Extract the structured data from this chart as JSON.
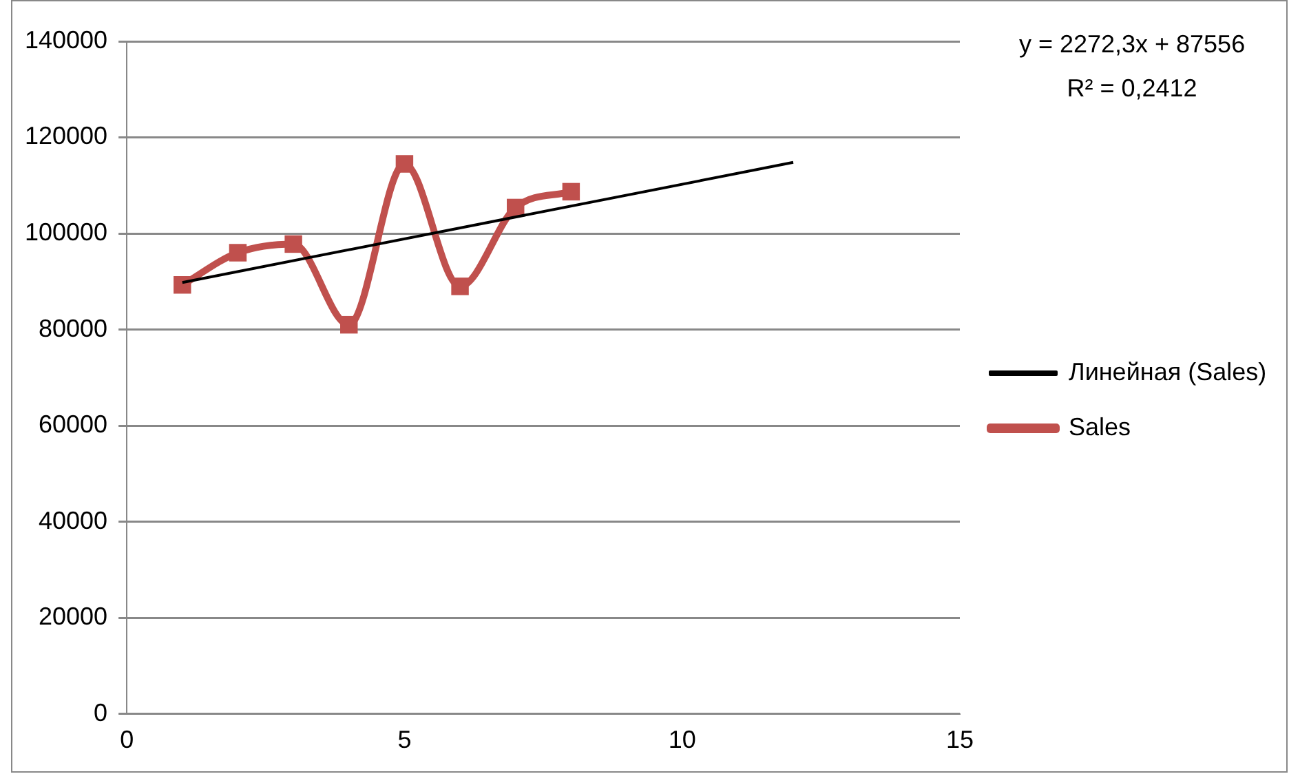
{
  "chart_data": {
    "type": "line",
    "annotations": [
      "y = 2272,3x + 87556",
      "R² = 0,2412"
    ],
    "xlim": [
      0,
      15
    ],
    "xticks": [
      0,
      5,
      10,
      15
    ],
    "ylim": [
      0,
      140000
    ],
    "yticks": [
      0,
      20000,
      40000,
      60000,
      80000,
      100000,
      120000,
      140000
    ],
    "grid": "y",
    "legend": "right",
    "marker": "square",
    "line_style": "solid",
    "series": [
      {
        "name": "Sales",
        "color": "#c0504d",
        "x": [
          1,
          2,
          3,
          4,
          5,
          6,
          7,
          8
        ],
        "values": [
          89300,
          96000,
          97800,
          81000,
          114500,
          89000,
          105400,
          108700
        ]
      },
      {
        "name": "Линейная (Sales)",
        "color": "#000000",
        "marker": "none",
        "x": [
          1,
          12
        ],
        "values": [
          89800,
          114800
        ]
      }
    ]
  }
}
